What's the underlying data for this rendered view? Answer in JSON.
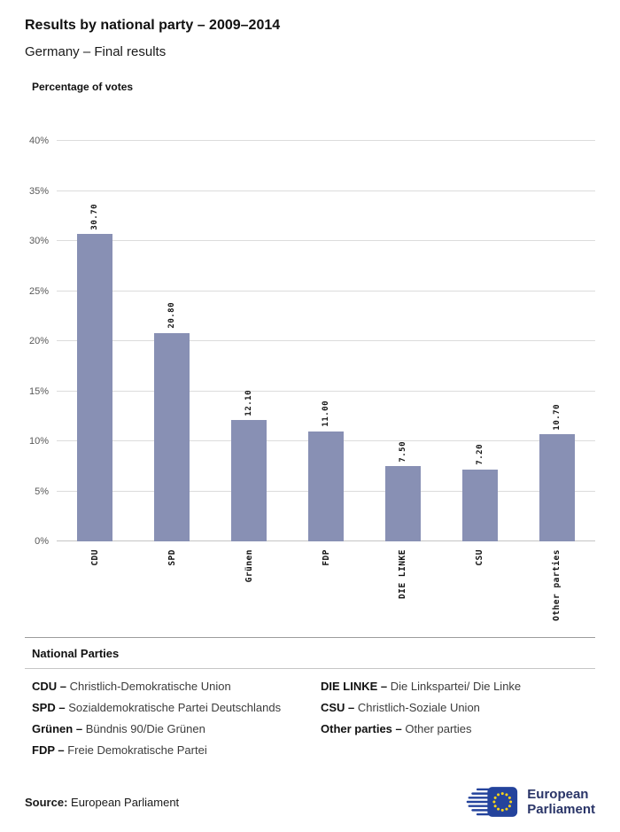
{
  "header": {
    "title": "Results by national party – 2009–2014",
    "subtitle": "Germany – Final results"
  },
  "chart_data": {
    "type": "bar",
    "title": "Percentage of votes",
    "xlabel": "",
    "ylabel": "Percentage of votes",
    "categories": [
      "CDU",
      "SPD",
      "Grünen",
      "FDP",
      "DIE LINKE",
      "CSU",
      "Other parties"
    ],
    "values": [
      30.7,
      20.8,
      12.1,
      11.0,
      7.5,
      7.2,
      10.7
    ],
    "value_labels": [
      "30.70",
      "20.80",
      "12.10",
      "11.00",
      "7.50",
      "7.20",
      "10.70"
    ],
    "ylim": [
      0,
      40
    ],
    "yticks": [
      "0%",
      "5%",
      "10%",
      "15%",
      "20%",
      "25%",
      "30%",
      "35%",
      "40%"
    ],
    "grid": true,
    "legend_position": "none",
    "bar_color": "#8890b4"
  },
  "legend": {
    "heading": "National Parties",
    "columns": [
      [
        {
          "abbr": "CDU –",
          "name": "Christlich-Demokratische Union"
        },
        {
          "abbr": "SPD –",
          "name": "Sozialdemokratische Partei Deutschlands"
        },
        {
          "abbr": "Grünen –",
          "name": "Bündnis 90/Die Grünen"
        },
        {
          "abbr": "FDP –",
          "name": "Freie Demokratische Partei"
        }
      ],
      [
        {
          "abbr": "DIE LINKE –",
          "name": "Die Linkspartei/ Die Linke"
        },
        {
          "abbr": "CSU –",
          "name": "Christlich-Soziale Union"
        },
        {
          "abbr": "Other parties –",
          "name": "Other parties"
        }
      ]
    ]
  },
  "footer": {
    "source_label": "Source:",
    "source_value": "European Parliament",
    "logo": {
      "line1": "European",
      "line2": "Parliament"
    }
  },
  "colors": {
    "bar": "#8890b4",
    "gridline": "#dcdcdc",
    "axis_text": "#595959",
    "logo_blue": "#24439c",
    "star_gold": "#ffd617"
  }
}
